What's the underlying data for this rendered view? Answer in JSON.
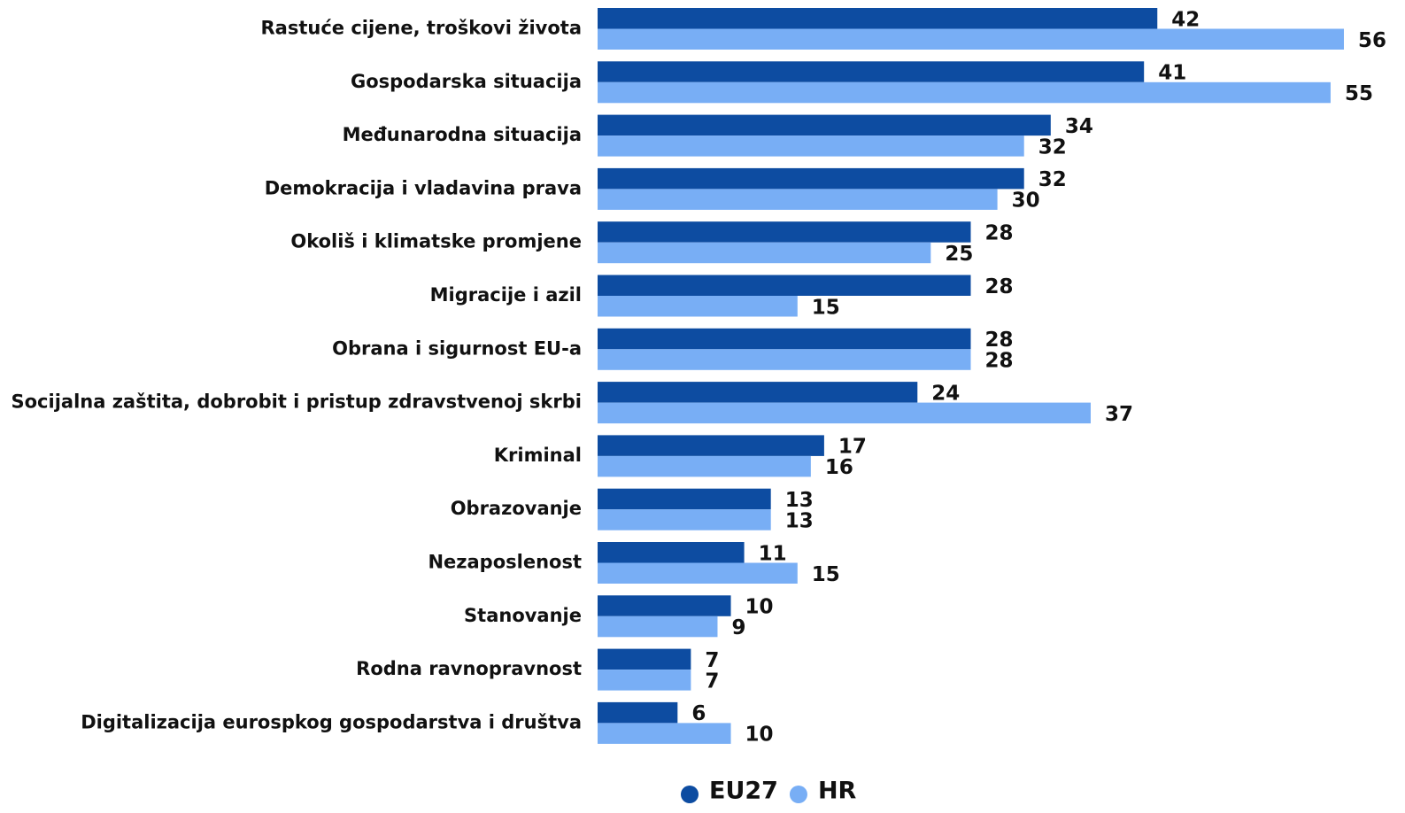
{
  "chart_data": {
    "type": "bar",
    "orientation": "horizontal",
    "categories": [
      "Rastuće cijene, troškovi života",
      "Gospodarska situacija",
      "Međunarodna situacija",
      "Demokracija i vladavina prava",
      "Okoliš i klimatske promjene",
      "Migracije i azil",
      "Obrana i sigurnost EU-a",
      "Socijalna zaštita, dobrobit i pristup zdravstvenoj skrbi",
      "Kriminal",
      "Obrazovanje",
      "Nezaposlenost",
      "Stanovanje",
      "Rodna ravnopravnost",
      "Digitalizacija eurospkog gospodarstva i društva"
    ],
    "series": [
      {
        "name": "EU27",
        "color": "#0d4ca1",
        "values": [
          42,
          41,
          34,
          32,
          28,
          28,
          28,
          24,
          17,
          13,
          11,
          10,
          7,
          6
        ]
      },
      {
        "name": "HR",
        "color": "#78aef5",
        "values": [
          56,
          55,
          32,
          30,
          25,
          15,
          28,
          37,
          16,
          13,
          15,
          9,
          7,
          10
        ]
      }
    ],
    "legend": "bottom"
  }
}
